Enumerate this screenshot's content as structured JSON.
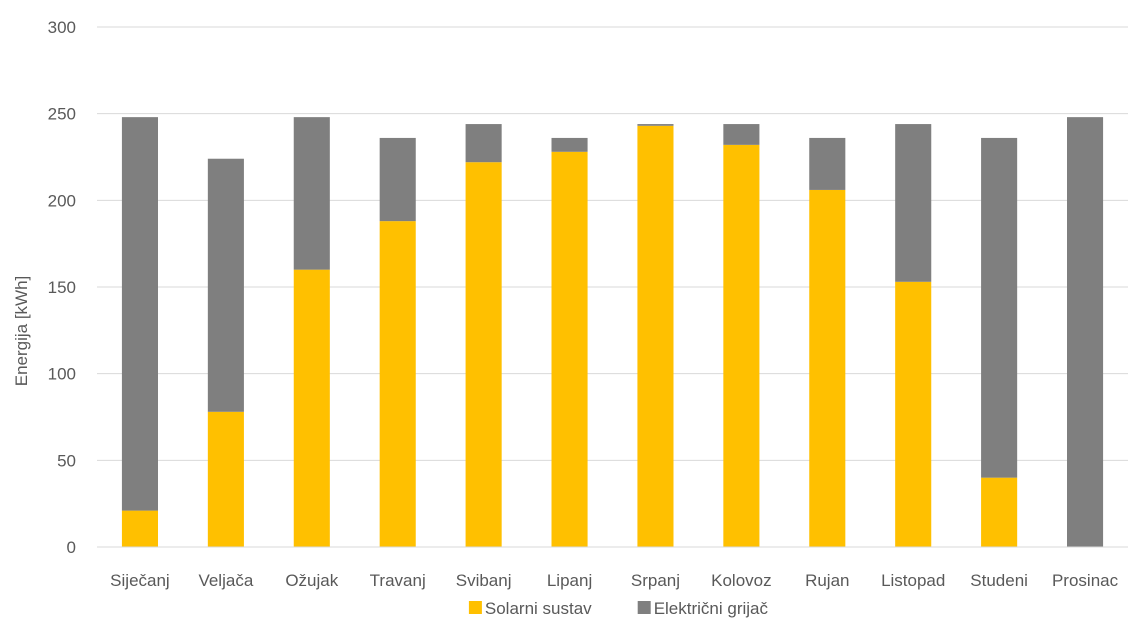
{
  "chart_data": {
    "type": "bar",
    "stacked": true,
    "title": "",
    "xlabel": "",
    "ylabel": "Energija [kWh]",
    "ylim": [
      0,
      300
    ],
    "yticks": [
      0,
      50,
      100,
      150,
      200,
      250,
      300
    ],
    "grid": true,
    "legend_position": "bottom",
    "categories": [
      "Siječanj",
      "Veljača",
      "Ožujak",
      "Travanj",
      "Svibanj",
      "Lipanj",
      "Srpanj",
      "Kolovoz",
      "Rujan",
      "Listopad",
      "Studeni",
      "Prosinac"
    ],
    "series": [
      {
        "name": "Solarni sustav",
        "color": "#FFC000",
        "values": [
          21,
          78,
          160,
          188,
          222,
          228,
          243,
          232,
          206,
          153,
          40,
          0
        ]
      },
      {
        "name": "Električni grijač",
        "color": "#7F7F7F",
        "values": [
          227,
          146,
          88,
          48,
          22,
          8,
          1,
          12,
          30,
          91,
          196,
          248
        ]
      }
    ]
  }
}
